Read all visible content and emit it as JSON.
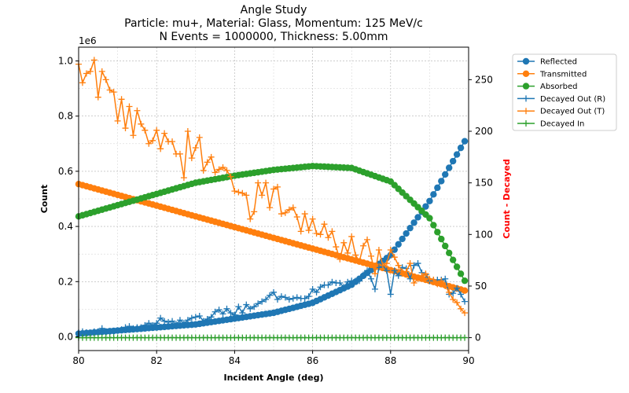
{
  "chart_data": {
    "type": "line",
    "title_lines": [
      "Angle Study",
      "Particle: mu+, Material: Glass, Momentum: 125 MeV/c",
      "N Events = 1000000, Thickness: 5.00mm"
    ],
    "xlabel": "Incident Angle (deg)",
    "ylabel": "Count",
    "y2label": "Count - Decayed",
    "offset_text": "1e6",
    "xlim": [
      80,
      90
    ],
    "ylim": [
      -0.05,
      1.05
    ],
    "y2lim": [
      -12.5,
      281.5
    ],
    "x_ticks": [
      "80",
      "82",
      "84",
      "86",
      "88",
      "90"
    ],
    "y_ticks": [
      "0.0",
      "0.2",
      "0.4",
      "0.6",
      "0.8",
      "1.0"
    ],
    "y2_ticks": [
      "0",
      "50",
      "100",
      "150",
      "200",
      "250"
    ],
    "grid": true,
    "legend_position": "outside-right-top",
    "x": [
      80.0,
      80.1,
      80.2,
      80.3,
      80.4,
      80.5,
      80.6,
      80.7,
      80.8,
      80.9,
      81.0,
      81.1,
      81.2,
      81.3,
      81.4,
      81.5,
      81.6,
      81.7,
      81.8,
      81.9,
      82.0,
      82.1,
      82.2,
      82.3,
      82.4,
      82.5,
      82.6,
      82.7,
      82.8,
      82.9,
      83.0,
      83.1,
      83.2,
      83.3,
      83.4,
      83.5,
      83.6,
      83.7,
      83.8,
      83.9,
      84.0,
      84.1,
      84.2,
      84.3,
      84.4,
      84.5,
      84.6,
      84.7,
      84.8,
      84.9,
      85.0,
      85.1,
      85.2,
      85.3,
      85.4,
      85.5,
      85.6,
      85.7,
      85.8,
      85.9,
      86.0,
      86.1,
      86.2,
      86.3,
      86.4,
      86.5,
      86.6,
      86.7,
      86.8,
      86.9,
      87.0,
      87.1,
      87.2,
      87.3,
      87.4,
      87.5,
      87.6,
      87.7,
      87.8,
      87.9,
      88.0,
      88.1,
      88.2,
      88.3,
      88.4,
      88.5,
      88.6,
      88.7,
      88.8,
      88.9,
      89.0,
      89.1,
      89.2,
      89.3,
      89.4,
      89.5,
      89.6,
      89.7,
      89.8,
      89.9
    ],
    "series": [
      {
        "name": "Reflected",
        "axis": "left",
        "color": "#1f77b4",
        "marker": "circle",
        "values": [
          0.0112,
          0.0123,
          0.0134,
          0.0146,
          0.0157,
          0.0168,
          0.0179,
          0.019,
          0.0202,
          0.0213,
          0.0224,
          0.0235,
          0.0246,
          0.0258,
          0.0269,
          0.028,
          0.0291,
          0.0302,
          0.0314,
          0.0325,
          0.0336,
          0.0347,
          0.0358,
          0.037,
          0.0381,
          0.0392,
          0.0403,
          0.0414,
          0.0426,
          0.0437,
          0.0448,
          0.0469,
          0.049,
          0.0511,
          0.0532,
          0.0553,
          0.0574,
          0.0595,
          0.0616,
          0.0637,
          0.0658,
          0.0679,
          0.07,
          0.0721,
          0.0742,
          0.0763,
          0.0784,
          0.0805,
          0.0826,
          0.0847,
          0.0868,
          0.0904,
          0.0941,
          0.0977,
          0.1013,
          0.1049,
          0.1086,
          0.1122,
          0.1158,
          0.1195,
          0.1231,
          0.1297,
          0.1362,
          0.1428,
          0.1493,
          0.1559,
          0.1625,
          0.169,
          0.1756,
          0.1821,
          0.1887,
          0.1994,
          0.2102,
          0.2209,
          0.2317,
          0.2424,
          0.2531,
          0.2639,
          0.2746,
          0.2854,
          0.2961,
          0.3157,
          0.3353,
          0.3549,
          0.3745,
          0.3941,
          0.4137,
          0.4333,
          0.4529,
          0.4725,
          0.4921,
          0.5162,
          0.5403,
          0.5644,
          0.5885,
          0.6126,
          0.6367,
          0.6608,
          0.6849,
          0.709
        ]
      },
      {
        "name": "Transmitted",
        "axis": "left",
        "color": "#ff7f0e",
        "marker": "circle",
        "values": [
          0.5535,
          0.5496,
          0.5457,
          0.5418,
          0.5379,
          0.534,
          0.5301,
          0.5262,
          0.5223,
          0.5184,
          0.5145,
          0.5106,
          0.5067,
          0.5028,
          0.4989,
          0.495,
          0.4911,
          0.4872,
          0.4833,
          0.4794,
          0.4755,
          0.4716,
          0.4677,
          0.4638,
          0.4599,
          0.456,
          0.4521,
          0.4482,
          0.4443,
          0.4404,
          0.4365,
          0.4326,
          0.4287,
          0.4248,
          0.4209,
          0.417,
          0.4131,
          0.4092,
          0.4053,
          0.4014,
          0.3975,
          0.3936,
          0.3897,
          0.3858,
          0.3819,
          0.378,
          0.3741,
          0.3702,
          0.3663,
          0.3624,
          0.3585,
          0.3546,
          0.3507,
          0.3468,
          0.3429,
          0.339,
          0.3351,
          0.3312,
          0.3273,
          0.3234,
          0.3195,
          0.3156,
          0.3117,
          0.3078,
          0.3039,
          0.3,
          0.2961,
          0.2922,
          0.2883,
          0.2844,
          0.2805,
          0.2766,
          0.2727,
          0.2688,
          0.2649,
          0.261,
          0.2571,
          0.2532,
          0.2493,
          0.2454,
          0.2415,
          0.2376,
          0.2337,
          0.2298,
          0.2259,
          0.222,
          0.2181,
          0.2142,
          0.2103,
          0.2064,
          0.2025,
          0.1986,
          0.1947,
          0.1908,
          0.1869,
          0.183,
          0.1791,
          0.1752,
          0.1713,
          0.1674
        ]
      },
      {
        "name": "Absorbed",
        "axis": "left",
        "color": "#2ca02c",
        "marker": "circle",
        "values": [
          0.4364,
          0.4405,
          0.4445,
          0.4486,
          0.4527,
          0.4567,
          0.4608,
          0.4649,
          0.4689,
          0.473,
          0.4771,
          0.4811,
          0.4852,
          0.4893,
          0.4933,
          0.4974,
          0.5015,
          0.5055,
          0.5096,
          0.5137,
          0.5177,
          0.5218,
          0.5259,
          0.5299,
          0.534,
          0.5381,
          0.5421,
          0.5462,
          0.5503,
          0.5543,
          0.5584,
          0.5609,
          0.5635,
          0.566,
          0.5686,
          0.5711,
          0.5737,
          0.5762,
          0.5788,
          0.5813,
          0.5839,
          0.586,
          0.5881,
          0.5902,
          0.5923,
          0.5944,
          0.5965,
          0.5986,
          0.6007,
          0.6028,
          0.6049,
          0.6063,
          0.6077,
          0.6091,
          0.6105,
          0.6119,
          0.6133,
          0.6147,
          0.6161,
          0.6175,
          0.6189,
          0.6182,
          0.6175,
          0.6168,
          0.6161,
          0.6154,
          0.6147,
          0.614,
          0.6133,
          0.6126,
          0.6119,
          0.607,
          0.6021,
          0.5972,
          0.5923,
          0.5874,
          0.5825,
          0.5776,
          0.5727,
          0.5678,
          0.5629,
          0.5496,
          0.5363,
          0.523,
          0.5097,
          0.4964,
          0.4831,
          0.4698,
          0.4565,
          0.4432,
          0.4299,
          0.4047,
          0.3795,
          0.3543,
          0.3291,
          0.3039,
          0.2787,
          0.2535,
          0.2283,
          0.2031
        ]
      },
      {
        "name": "Decayed Out (R)",
        "axis": "right",
        "color": "#1f77b4",
        "marker": "plus",
        "values": [
          5,
          6,
          5,
          4,
          6,
          6,
          9,
          5,
          6,
          6,
          7,
          8,
          10,
          11,
          9,
          10,
          10,
          12,
          14,
          12,
          14,
          19,
          16,
          15,
          16,
          13,
          17,
          14,
          17,
          19,
          20,
          21,
          16,
          18,
          20,
          25,
          27,
          23,
          28,
          24,
          22,
          30,
          24,
          32,
          28,
          30,
          33,
          35,
          37,
          41,
          44,
          37,
          40,
          39,
          37,
          38,
          39,
          38,
          38,
          40,
          47,
          44,
          49,
          51,
          51,
          54,
          53,
          53,
          49,
          54,
          55,
          55,
          55,
          61,
          65,
          57,
          47,
          68,
          70,
          65,
          42,
          65,
          60,
          68,
          67,
          57,
          70,
          72,
          63,
          61,
          55,
          56,
          56,
          56,
          57,
          42,
          43,
          48,
          42,
          35
        ]
      },
      {
        "name": "Decayed Out (T)",
        "axis": "right",
        "color": "#ff7f0e",
        "marker": "plus",
        "values": [
          265,
          247,
          256,
          258,
          269,
          233,
          258,
          250,
          240,
          238,
          210,
          231,
          203,
          224,
          196,
          220,
          207,
          201,
          188,
          191,
          201,
          183,
          198,
          190,
          190,
          178,
          178,
          155,
          200,
          174,
          184,
          194,
          162,
          170,
          175,
          160,
          163,
          165,
          162,
          156,
          142,
          141,
          140,
          138,
          115,
          122,
          150,
          138,
          150,
          126,
          144,
          146,
          120,
          121,
          124,
          126,
          117,
          103,
          120,
          104,
          115,
          101,
          100,
          110,
          97,
          103,
          88,
          76,
          92,
          82,
          98,
          80,
          74,
          89,
          95,
          79,
          62,
          85,
          70,
          72,
          85,
          78,
          70,
          64,
          64,
          72,
          53,
          57,
          60,
          62,
          57,
          56,
          52,
          55,
          50,
          44,
          37,
          34,
          28,
          24
        ]
      },
      {
        "name": "Decayed In",
        "axis": "right",
        "color": "#2ca02c",
        "marker": "plus",
        "values": [
          0,
          0,
          0,
          0,
          0,
          0,
          0,
          0,
          0,
          0,
          0,
          0,
          0,
          0,
          0,
          0,
          0,
          0,
          0,
          0,
          0,
          0,
          0,
          0,
          0,
          0,
          0,
          0,
          0,
          0,
          0,
          0,
          0,
          0,
          0,
          0,
          0,
          0,
          0,
          0,
          0,
          0,
          0,
          0,
          0,
          0,
          0,
          0,
          0,
          0,
          0,
          0,
          0,
          0,
          0,
          0,
          0,
          0,
          0,
          0,
          0,
          0,
          0,
          0,
          0,
          0,
          0,
          0,
          0,
          0,
          0,
          0,
          0,
          0,
          0,
          0,
          0,
          0,
          0,
          0,
          0,
          0,
          0,
          0,
          0,
          0,
          0,
          0,
          0,
          0,
          0,
          0,
          0,
          0,
          0,
          0,
          0,
          0,
          0,
          0
        ]
      }
    ]
  }
}
